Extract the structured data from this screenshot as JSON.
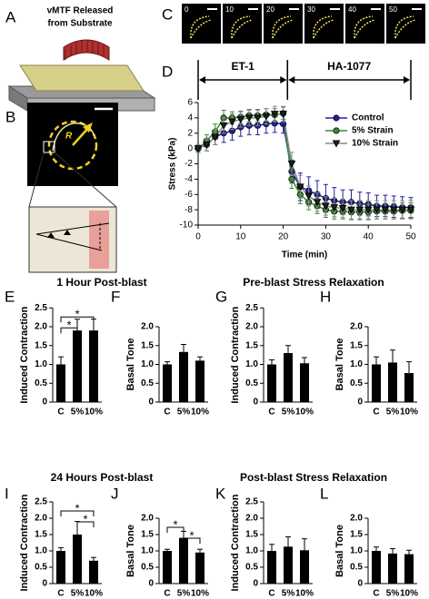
{
  "panel_a": {
    "letter": "A",
    "title_lines": [
      "vMTF Released",
      "from Substrate"
    ]
  },
  "panel_b": {
    "letter": "B",
    "radius_label": "R"
  },
  "panel_c": {
    "letter": "C",
    "frames": [
      "0",
      "10",
      "20",
      "30",
      "40",
      "50"
    ]
  },
  "section_titles": [
    "1 Hour Post-blast",
    "Pre-blast Stress Relaxation",
    "24 Hours Post-blast",
    "Post-blast Stress Relaxation"
  ],
  "chart_data": [
    {
      "type": "line",
      "panel": "D",
      "x_label": "Time (min)",
      "y_label": "Stress (kPa)",
      "xlim": [
        0,
        50
      ],
      "xticks": [
        0,
        10,
        20,
        30,
        40,
        50
      ],
      "ylim": [
        -10,
        6
      ],
      "yticks": [
        -10,
        -8,
        -6,
        -4,
        -2,
        0,
        2,
        4,
        6
      ],
      "annotations": [
        {
          "text": "ET-1",
          "span": [
            0,
            21
          ]
        },
        {
          "text": "HA-1077",
          "span": [
            21,
            50
          ]
        }
      ],
      "x": [
        0,
        2,
        4,
        6,
        8,
        10,
        12,
        14,
        16,
        18,
        20,
        22,
        24,
        26,
        28,
        30,
        32,
        34,
        36,
        38,
        40,
        42,
        44,
        46,
        48,
        50
      ],
      "series": [
        {
          "name": "Control",
          "color": "#2020a0",
          "marker": "circle",
          "values": [
            0,
            0.5,
            1.5,
            2,
            2.3,
            2.8,
            3,
            3,
            3.2,
            3.3,
            3.2,
            -3,
            -5,
            -5.5,
            -6,
            -6.5,
            -6.8,
            -7,
            -7,
            -7.2,
            -7.3,
            -7.5,
            -7.5,
            -7.6,
            -7.7,
            -7.7
          ],
          "errors": [
            0.5,
            0.8,
            1,
            1.2,
            1.2,
            1.2,
            1.2,
            1.2,
            1.2,
            1.2,
            1.2,
            1.5,
            1.8,
            1.8,
            1.8,
            1.8,
            1.7,
            1.6,
            1.6,
            1.5,
            1.5,
            1.4,
            1.4,
            1.4,
            1.4,
            1.3
          ]
        },
        {
          "name": "5% Strain",
          "color": "#3a8a30",
          "marker": "circle",
          "values": [
            0,
            1,
            2.2,
            4,
            4,
            4.1,
            4.3,
            4.3,
            4.4,
            4.4,
            4.6,
            -4,
            -6,
            -7,
            -7.5,
            -8,
            -8.2,
            -8.2,
            -8.3,
            -8.3,
            -8.3,
            -8.2,
            -8.2,
            -8.2,
            -8.1,
            -8.1
          ],
          "errors": [
            0.5,
            0.8,
            1,
            1,
            0.8,
            0.8,
            0.8,
            0.8,
            0.8,
            0.8,
            0.8,
            1.2,
            1.2,
            1,
            1,
            1,
            1,
            1,
            1,
            1,
            1,
            1,
            1,
            1,
            1,
            1
          ]
        },
        {
          "name": "10% Strain",
          "color": "#888888",
          "marker": "triangle-down",
          "values": [
            0,
            0.5,
            1.5,
            3,
            3.5,
            3.8,
            4,
            4,
            4.2,
            4.5,
            4.5,
            -2,
            -5,
            -6.2,
            -7,
            -7.5,
            -7.7,
            -7.8,
            -8,
            -8,
            -8,
            -8,
            -8,
            -8,
            -8,
            -8
          ],
          "errors": [
            0.5,
            0.8,
            1,
            1,
            1,
            1,
            1,
            1,
            1,
            1,
            1,
            1.5,
            1.5,
            1.3,
            1.2,
            1.2,
            1.2,
            1.2,
            1.2,
            1.2,
            1.2,
            1.2,
            1.2,
            1.2,
            1.2,
            1.2
          ]
        }
      ]
    },
    {
      "type": "bar",
      "panel": "E",
      "y_label": "Induced Contraction",
      "categories": [
        "C",
        "5%",
        "10%"
      ],
      "color": "#000000",
      "values": [
        1.0,
        1.9,
        1.9
      ],
      "errors": [
        0.2,
        0.3,
        0.3
      ],
      "ylim": [
        0,
        2.5
      ],
      "yticks": [
        0,
        0.5,
        {
          "value": 1,
          "label": "1.0"
        },
        1.5,
        {
          "value": 2,
          "label": "2.0"
        },
        2.5
      ],
      "significance": [
        {
          "pair": [
            0,
            1
          ],
          "label": "*"
        },
        {
          "pair": [
            0,
            2
          ],
          "label": "*"
        }
      ]
    },
    {
      "type": "bar",
      "panel": "F",
      "y_label": "Basal Tone",
      "categories": [
        "C",
        "5%",
        "10%"
      ],
      "color": "#000000",
      "values": [
        1.0,
        1.33,
        1.1
      ],
      "errors": [
        0.07,
        0.2,
        0.1
      ],
      "ylim": [
        0,
        2
      ],
      "yticks": [
        0,
        0.5,
        {
          "value": 1,
          "label": "1.0"
        },
        1.5,
        {
          "value": 2,
          "label": "2.0"
        }
      ]
    },
    {
      "type": "bar",
      "panel": "G",
      "y_label": "Induced Contraction",
      "categories": [
        "C",
        "5%",
        "10%"
      ],
      "color": "#000000",
      "values": [
        1.0,
        1.3,
        1.03
      ],
      "errors": [
        0.12,
        0.2,
        0.15
      ],
      "ylim": [
        0,
        2.5
      ],
      "yticks": [
        0,
        0.5,
        {
          "value": 1,
          "label": "1.0"
        },
        1.5,
        {
          "value": 2,
          "label": "2.0"
        },
        2.5
      ]
    },
    {
      "type": "bar",
      "panel": "H",
      "y_label": "Basal Tone",
      "categories": [
        "C",
        "5%",
        "10%"
      ],
      "color": "#000000",
      "values": [
        1.0,
        1.05,
        0.77
      ],
      "errors": [
        0.2,
        0.33,
        0.3
      ],
      "ylim": [
        0,
        2
      ],
      "yticks": [
        0,
        0.5,
        {
          "value": 1,
          "label": "1.0"
        },
        1.5,
        {
          "value": 2,
          "label": "2.0"
        }
      ]
    },
    {
      "type": "bar",
      "panel": "I",
      "y_label": "Induced Contraction",
      "categories": [
        "C",
        "5%",
        "10%"
      ],
      "color": "#000000",
      "values": [
        1.0,
        1.5,
        0.7
      ],
      "errors": [
        0.1,
        0.4,
        0.1
      ],
      "ylim": [
        0,
        2.5
      ],
      "yticks": [
        0,
        0.5,
        {
          "value": 1,
          "label": "1.0"
        },
        1.5,
        {
          "value": 2,
          "label": "2.0"
        },
        2.5
      ],
      "significance": [
        {
          "pair": [
            1,
            2
          ],
          "label": "*"
        },
        {
          "pair": [
            0,
            2
          ],
          "label": "*"
        }
      ]
    },
    {
      "type": "bar",
      "panel": "J",
      "y_label": "Basal Tone",
      "categories": [
        "C",
        "5%",
        "10%"
      ],
      "color": "#000000",
      "values": [
        1.0,
        1.4,
        0.95
      ],
      "errors": [
        0.05,
        0.2,
        0.1
      ],
      "ylim": [
        0,
        2
      ],
      "yticks": [
        0,
        0.5,
        {
          "value": 1,
          "label": "1.0"
        },
        1.5,
        {
          "value": 2,
          "label": "2.0"
        }
      ],
      "significance": [
        {
          "pair": [
            1,
            2
          ],
          "label": "*"
        },
        {
          "pair": [
            0,
            1
          ],
          "label": "*"
        }
      ]
    },
    {
      "type": "bar",
      "panel": "K",
      "y_label": "Induced Contraction",
      "categories": [
        "C",
        "5%",
        "10%"
      ],
      "color": "#000000",
      "values": [
        1.0,
        1.13,
        1.02
      ],
      "errors": [
        0.2,
        0.3,
        0.35
      ],
      "ylim": [
        0,
        2.5
      ],
      "yticks": [
        0,
        0.5,
        {
          "value": 1,
          "label": "1.0"
        },
        1.5,
        {
          "value": 2,
          "label": "2.0"
        },
        2.5
      ]
    },
    {
      "type": "bar",
      "panel": "L",
      "y_label": "Basal Tone",
      "categories": [
        "C",
        "5%",
        "10%"
      ],
      "color": "#000000",
      "values": [
        1.0,
        0.92,
        0.9
      ],
      "errors": [
        0.12,
        0.15,
        0.12
      ],
      "ylim": [
        0,
        2
      ],
      "yticks": [
        0,
        0.5,
        {
          "value": 1,
          "label": "1.0"
        },
        1.5,
        {
          "value": 2,
          "label": "2.0"
        }
      ]
    }
  ]
}
